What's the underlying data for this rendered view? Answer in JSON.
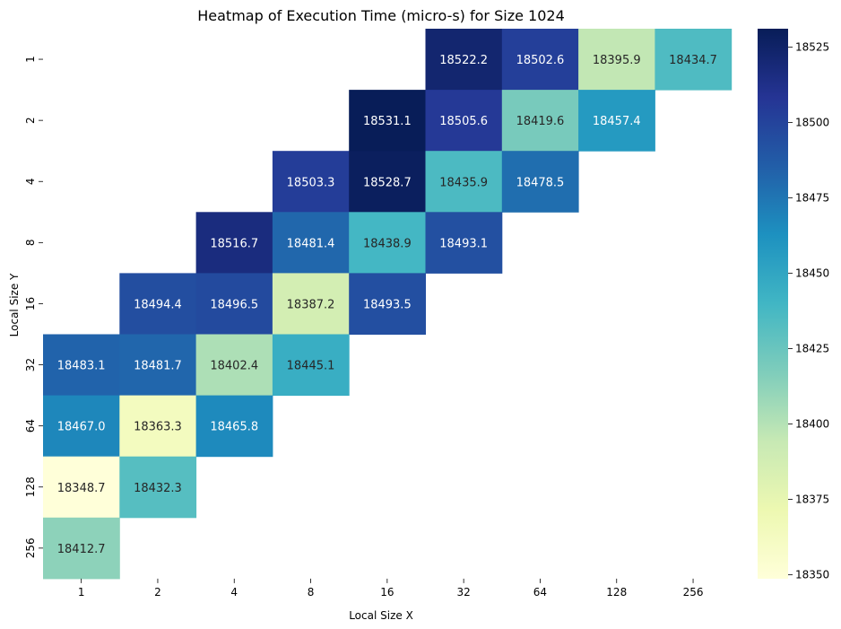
{
  "chart_data": {
    "type": "heatmap",
    "title": "Heatmap of Execution Time (micro-s) for Size 1024",
    "xlabel": "Local Size X",
    "ylabel": "Local Size Y",
    "x_categories": [
      "1",
      "2",
      "4",
      "8",
      "16",
      "32",
      "64",
      "128",
      "256"
    ],
    "y_categories": [
      "1",
      "2",
      "4",
      "8",
      "16",
      "32",
      "64",
      "128",
      "256"
    ],
    "values": [
      [
        null,
        null,
        null,
        null,
        null,
        18522.2,
        18502.6,
        18395.9,
        18434.7
      ],
      [
        null,
        null,
        null,
        null,
        18531.1,
        18505.6,
        18419.6,
        18457.4,
        null
      ],
      [
        null,
        null,
        null,
        18503.3,
        18528.7,
        18435.9,
        18478.5,
        null,
        null
      ],
      [
        null,
        null,
        18516.7,
        18481.4,
        18438.9,
        18493.1,
        null,
        null,
        null
      ],
      [
        null,
        18494.4,
        18496.5,
        18387.2,
        18493.5,
        null,
        null,
        null,
        null
      ],
      [
        18483.1,
        18481.7,
        18402.4,
        18445.1,
        null,
        null,
        null,
        null,
        null
      ],
      [
        18467.0,
        18363.3,
        18465.8,
        null,
        null,
        null,
        null,
        null,
        null
      ],
      [
        18348.7,
        18432.3,
        null,
        null,
        null,
        null,
        null,
        null,
        null
      ],
      [
        18412.7,
        null,
        null,
        null,
        null,
        null,
        null,
        null,
        null
      ]
    ],
    "value_format": "0.1f",
    "colormap": "YlGnBu",
    "colorbar": {
      "range": [
        18348.7,
        18531.1
      ],
      "ticks": [
        18350,
        18375,
        18400,
        18425,
        18450,
        18475,
        18500,
        18525
      ]
    },
    "colormap_stops": [
      "#ffffd9",
      "#edf8b1",
      "#c7e9b4",
      "#7fcdbb",
      "#41b6c4",
      "#1d91c0",
      "#225ea8",
      "#253494",
      "#081d58"
    ]
  }
}
